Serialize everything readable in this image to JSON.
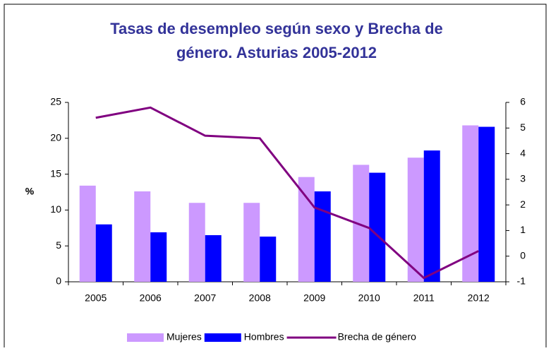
{
  "chart_data": {
    "type": "bar",
    "title": [
      "Tasas de desempleo según sexo y Brecha de",
      "género. Asturias 2005-2012"
    ],
    "y_label": "%",
    "categories": [
      "2005",
      "2006",
      "2007",
      "2008",
      "2009",
      "2010",
      "2011",
      "2012"
    ],
    "series": [
      {
        "name": "Mujeres",
        "color": "#cc99ff",
        "type": "bar",
        "values": [
          13.4,
          12.6,
          11.0,
          11.0,
          14.6,
          16.3,
          17.3,
          21.8
        ]
      },
      {
        "name": "Hombres",
        "color": "#0000ff",
        "type": "bar",
        "values": [
          8.0,
          6.9,
          6.5,
          6.3,
          12.6,
          15.2,
          18.3,
          21.6
        ]
      },
      {
        "name": "Brecha de género",
        "color": "#800080",
        "type": "line",
        "axis": "y2",
        "values": [
          5.4,
          5.8,
          4.7,
          4.6,
          1.9,
          1.1,
          -0.85,
          0.2
        ]
      }
    ],
    "ylim": [
      0,
      25
    ],
    "yticks": [
      0,
      5,
      10,
      15,
      20,
      25
    ],
    "y2lim": [
      -1,
      6
    ],
    "y2ticks": [
      -1,
      0,
      1,
      2,
      3,
      4,
      5,
      6
    ],
    "legend": "bottom"
  }
}
